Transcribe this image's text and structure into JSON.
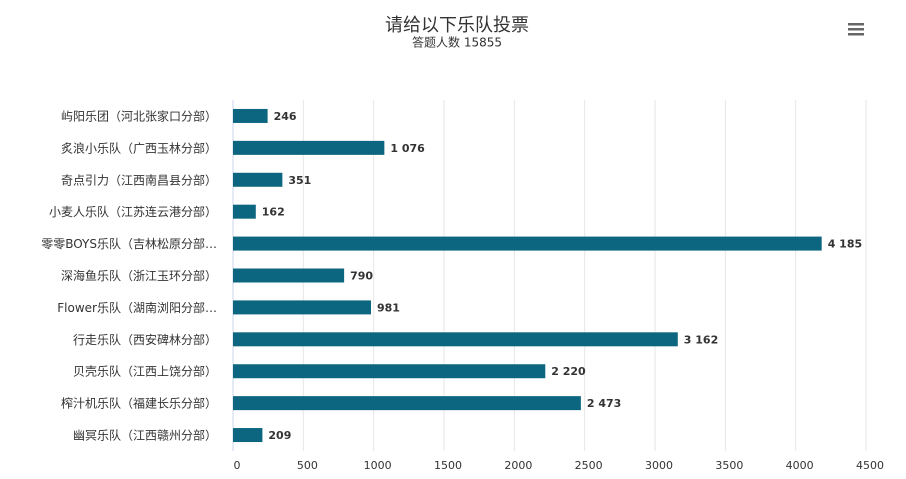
{
  "chart_data": {
    "type": "hbar",
    "title": "请给以下乐队投票",
    "subtitle": "答题人数 15855",
    "categories": [
      "屿阳乐团（河北张家口分部）",
      "炙浪小乐队（广西玉林分部）",
      "奇点引力（江西南昌县分部）",
      "小麦人乐队（江苏连云港分部）",
      "零零BOYS乐队（吉林松原分部…",
      "深海鱼乐队（浙江玉环分部）",
      "Flower乐队（湖南浏阳分部…",
      "行走乐队（西安碑林分部）",
      "贝壳乐队（江西上饶分部）",
      "榨汁机乐队（福建长乐分部）",
      "幽冥乐队（江西赣州分部）"
    ],
    "values": [
      246,
      1076,
      351,
      162,
      4185,
      790,
      981,
      3162,
      2220,
      2473,
      209
    ],
    "value_labels": [
      "246",
      "1 076",
      "351",
      "162",
      "4 185",
      "790",
      "981",
      "3 162",
      "2 220",
      "2 473",
      "209"
    ],
    "color": "#0d6680",
    "xlim": [
      0,
      4500
    ],
    "xticks": [
      0,
      500,
      1000,
      1500,
      2000,
      2500,
      3000,
      3500,
      4000,
      4500
    ],
    "grid": true
  }
}
